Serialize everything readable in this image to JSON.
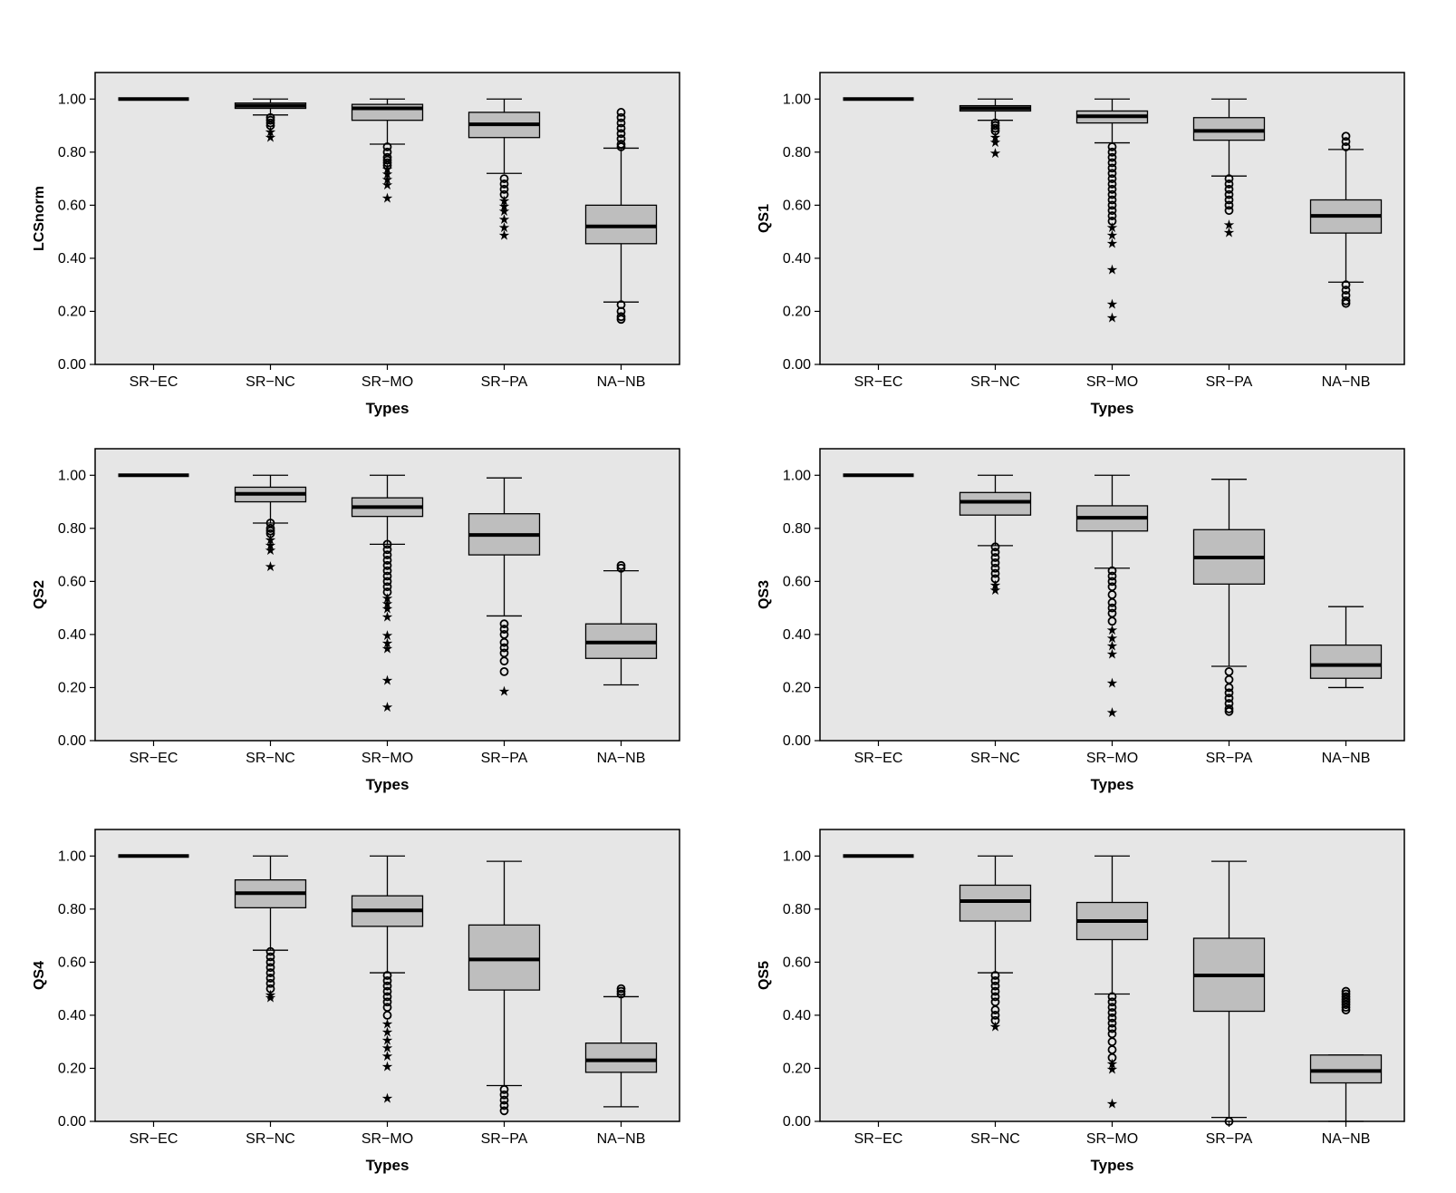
{
  "chart_data": [
    {
      "type": "box",
      "xlabel": "Types",
      "ylabel": "LCSnorm",
      "ylim": [
        0,
        1.1
      ],
      "yticks": [
        "0.00",
        "0.20",
        "0.40",
        "0.60",
        "0.80",
        "1.00"
      ],
      "categories": [
        "SR−EC",
        "SR−NC",
        "SR−MO",
        "SR−PA",
        "NA−NB"
      ],
      "boxes": [
        {
          "q1": 1.0,
          "median": 1.0,
          "q3": 1.0,
          "whislo": 1.0,
          "whishi": 1.0,
          "outliers": [],
          "extremes": []
        },
        {
          "q1": 0.965,
          "median": 0.975,
          "q3": 0.985,
          "whislo": 0.94,
          "whishi": 1.0,
          "outliers": [
            0.93,
            0.92,
            0.91,
            0.9
          ],
          "extremes": [
            0.88,
            0.86
          ]
        },
        {
          "q1": 0.92,
          "median": 0.965,
          "q3": 0.98,
          "whislo": 0.83,
          "whishi": 1.0,
          "outliers": [
            0.82,
            0.8,
            0.78,
            0.77,
            0.76,
            0.75
          ],
          "extremes": [
            0.74,
            0.72,
            0.7,
            0.68,
            0.63
          ]
        },
        {
          "q1": 0.855,
          "median": 0.905,
          "q3": 0.95,
          "whislo": 0.72,
          "whishi": 1.0,
          "outliers": [
            0.7,
            0.68,
            0.66,
            0.64
          ],
          "extremes": [
            0.62,
            0.6,
            0.58,
            0.55,
            0.52,
            0.49
          ]
        },
        {
          "q1": 0.455,
          "median": 0.52,
          "q3": 0.6,
          "whislo": 0.235,
          "whishi": 0.815,
          "outliers": [
            0.95,
            0.93,
            0.91,
            0.89,
            0.87,
            0.85,
            0.83,
            0.82,
            0.225,
            0.2,
            0.18,
            0.17
          ],
          "extremes": []
        }
      ]
    },
    {
      "type": "box",
      "xlabel": "Types",
      "ylabel": "QS1",
      "ylim": [
        0,
        1.1
      ],
      "yticks": [
        "0.00",
        "0.20",
        "0.40",
        "0.60",
        "0.80",
        "1.00"
      ],
      "categories": [
        "SR−EC",
        "SR−NC",
        "SR−MO",
        "SR−PA",
        "NA−NB"
      ],
      "boxes": [
        {
          "q1": 1.0,
          "median": 1.0,
          "q3": 1.0,
          "whislo": 1.0,
          "whishi": 1.0,
          "outliers": [],
          "extremes": []
        },
        {
          "q1": 0.955,
          "median": 0.965,
          "q3": 0.975,
          "whislo": 0.92,
          "whishi": 1.0,
          "outliers": [
            0.91,
            0.9,
            0.89,
            0.88
          ],
          "extremes": [
            0.86,
            0.84,
            0.8
          ]
        },
        {
          "q1": 0.91,
          "median": 0.935,
          "q3": 0.955,
          "whislo": 0.835,
          "whishi": 1.0,
          "outliers": [
            0.82,
            0.8,
            0.78,
            0.76,
            0.74,
            0.72,
            0.7,
            0.68,
            0.66,
            0.64,
            0.62,
            0.6,
            0.58,
            0.56,
            0.54
          ],
          "extremes": [
            0.52,
            0.49,
            0.46,
            0.36,
            0.23,
            0.18
          ]
        },
        {
          "q1": 0.845,
          "median": 0.88,
          "q3": 0.93,
          "whislo": 0.71,
          "whishi": 1.0,
          "outliers": [
            0.7,
            0.68,
            0.66,
            0.64,
            0.62,
            0.6,
            0.58
          ],
          "extremes": [
            0.53,
            0.5
          ]
        },
        {
          "q1": 0.495,
          "median": 0.56,
          "q3": 0.62,
          "whislo": 0.31,
          "whishi": 0.81,
          "outliers": [
            0.86,
            0.84,
            0.82,
            0.3,
            0.28,
            0.26,
            0.24,
            0.23
          ],
          "extremes": []
        }
      ]
    },
    {
      "type": "box",
      "xlabel": "Types",
      "ylabel": "QS2",
      "ylim": [
        0,
        1.1
      ],
      "yticks": [
        "0.00",
        "0.20",
        "0.40",
        "0.60",
        "0.80",
        "1.00"
      ],
      "categories": [
        "SR−EC",
        "SR−NC",
        "SR−MO",
        "SR−PA",
        "NA−NB"
      ],
      "boxes": [
        {
          "q1": 1.0,
          "median": 1.0,
          "q3": 1.0,
          "whislo": 1.0,
          "whishi": 1.0,
          "outliers": [],
          "extremes": []
        },
        {
          "q1": 0.9,
          "median": 0.93,
          "q3": 0.955,
          "whislo": 0.82,
          "whishi": 1.0,
          "outliers": [
            0.82,
            0.8,
            0.79,
            0.78
          ],
          "extremes": [
            0.76,
            0.74,
            0.72,
            0.66
          ]
        },
        {
          "q1": 0.845,
          "median": 0.88,
          "q3": 0.915,
          "whislo": 0.74,
          "whishi": 1.0,
          "outliers": [
            0.74,
            0.72,
            0.7,
            0.68,
            0.66,
            0.64,
            0.62,
            0.6,
            0.58,
            0.56
          ],
          "extremes": [
            0.54,
            0.52,
            0.5,
            0.47,
            0.4,
            0.37,
            0.35,
            0.23,
            0.13
          ]
        },
        {
          "q1": 0.7,
          "median": 0.775,
          "q3": 0.855,
          "whislo": 0.47,
          "whishi": 0.99,
          "outliers": [
            0.44,
            0.42,
            0.4,
            0.37,
            0.35,
            0.33,
            0.3,
            0.26
          ],
          "extremes": [
            0.19
          ]
        },
        {
          "q1": 0.31,
          "median": 0.37,
          "q3": 0.44,
          "whislo": 0.21,
          "whishi": 0.64,
          "outliers": [
            0.66,
            0.65
          ],
          "extremes": []
        }
      ]
    },
    {
      "type": "box",
      "xlabel": "Types",
      "ylabel": "QS3",
      "ylim": [
        0,
        1.1
      ],
      "yticks": [
        "0.00",
        "0.20",
        "0.40",
        "0.60",
        "0.80",
        "1.00"
      ],
      "categories": [
        "SR−EC",
        "SR−NC",
        "SR−MO",
        "SR−PA",
        "NA−NB"
      ],
      "boxes": [
        {
          "q1": 1.0,
          "median": 1.0,
          "q3": 1.0,
          "whislo": 1.0,
          "whishi": 1.0,
          "outliers": [],
          "extremes": []
        },
        {
          "q1": 0.85,
          "median": 0.9,
          "q3": 0.935,
          "whislo": 0.735,
          "whishi": 1.0,
          "outliers": [
            0.73,
            0.71,
            0.69,
            0.67,
            0.65,
            0.63,
            0.61
          ],
          "extremes": [
            0.59,
            0.57
          ]
        },
        {
          "q1": 0.79,
          "median": 0.84,
          "q3": 0.885,
          "whislo": 0.65,
          "whishi": 1.0,
          "outliers": [
            0.64,
            0.62,
            0.6,
            0.58,
            0.55,
            0.52,
            0.5,
            0.48,
            0.45
          ],
          "extremes": [
            0.42,
            0.39,
            0.36,
            0.33,
            0.22,
            0.11
          ]
        },
        {
          "q1": 0.59,
          "median": 0.69,
          "q3": 0.795,
          "whislo": 0.28,
          "whishi": 0.985,
          "outliers": [
            0.26,
            0.23,
            0.2,
            0.18,
            0.16,
            0.14,
            0.12,
            0.11
          ],
          "extremes": []
        },
        {
          "q1": 0.235,
          "median": 0.285,
          "q3": 0.36,
          "whislo": 0.2,
          "whishi": 0.505,
          "outliers": [],
          "extremes": []
        }
      ]
    },
    {
      "type": "box",
      "xlabel": "Types",
      "ylabel": "QS4",
      "ylim": [
        0,
        1.1
      ],
      "yticks": [
        "0.00",
        "0.20",
        "0.40",
        "0.60",
        "0.80",
        "1.00"
      ],
      "categories": [
        "SR−EC",
        "SR−NC",
        "SR−MO",
        "SR−PA",
        "NA−NB"
      ],
      "boxes": [
        {
          "q1": 1.0,
          "median": 1.0,
          "q3": 1.0,
          "whislo": 1.0,
          "whishi": 1.0,
          "outliers": [],
          "extremes": []
        },
        {
          "q1": 0.805,
          "median": 0.86,
          "q3": 0.91,
          "whislo": 0.645,
          "whishi": 1.0,
          "outliers": [
            0.64,
            0.62,
            0.6,
            0.58,
            0.56,
            0.54,
            0.52,
            0.5
          ],
          "extremes": [
            0.48,
            0.47
          ]
        },
        {
          "q1": 0.735,
          "median": 0.795,
          "q3": 0.85,
          "whislo": 0.56,
          "whishi": 1.0,
          "outliers": [
            0.55,
            0.53,
            0.51,
            0.49,
            0.47,
            0.45,
            0.43,
            0.4
          ],
          "extremes": [
            0.37,
            0.34,
            0.31,
            0.28,
            0.25,
            0.21,
            0.09
          ]
        },
        {
          "q1": 0.495,
          "median": 0.61,
          "q3": 0.74,
          "whislo": 0.135,
          "whishi": 0.98,
          "outliers": [
            0.12,
            0.1,
            0.08,
            0.06,
            0.04
          ],
          "extremes": []
        },
        {
          "q1": 0.185,
          "median": 0.23,
          "q3": 0.295,
          "whislo": 0.055,
          "whishi": 0.47,
          "outliers": [
            0.5,
            0.49,
            0.48
          ],
          "extremes": []
        }
      ]
    },
    {
      "type": "box",
      "xlabel": "Types",
      "ylabel": "QS5",
      "ylim": [
        0,
        1.1
      ],
      "yticks": [
        "0.00",
        "0.20",
        "0.40",
        "0.60",
        "0.80",
        "1.00"
      ],
      "categories": [
        "SR−EC",
        "SR−NC",
        "SR−MO",
        "SR−PA",
        "NA−NB"
      ],
      "boxes": [
        {
          "q1": 1.0,
          "median": 1.0,
          "q3": 1.0,
          "whislo": 1.0,
          "whishi": 1.0,
          "outliers": [],
          "extremes": []
        },
        {
          "q1": 0.755,
          "median": 0.83,
          "q3": 0.89,
          "whislo": 0.56,
          "whishi": 1.0,
          "outliers": [
            0.55,
            0.53,
            0.51,
            0.49,
            0.47,
            0.45,
            0.42,
            0.4,
            0.38
          ],
          "extremes": [
            0.36
          ]
        },
        {
          "q1": 0.685,
          "median": 0.755,
          "q3": 0.825,
          "whislo": 0.48,
          "whishi": 1.0,
          "outliers": [
            0.47,
            0.45,
            0.43,
            0.41,
            0.39,
            0.37,
            0.35,
            0.33,
            0.3,
            0.27,
            0.24
          ],
          "extremes": [
            0.22,
            0.2,
            0.07
          ]
        },
        {
          "q1": 0.415,
          "median": 0.55,
          "q3": 0.69,
          "whislo": 0.015,
          "whishi": 0.98,
          "outliers": [
            0.0
          ],
          "extremes": []
        },
        {
          "q1": 0.145,
          "median": 0.19,
          "q3": 0.25,
          "whislo": 0.0,
          "whishi": 0.25,
          "outliers": [
            0.49,
            0.48,
            0.47,
            0.46,
            0.45,
            0.44,
            0.43,
            0.42
          ],
          "extremes": []
        }
      ]
    }
  ]
}
